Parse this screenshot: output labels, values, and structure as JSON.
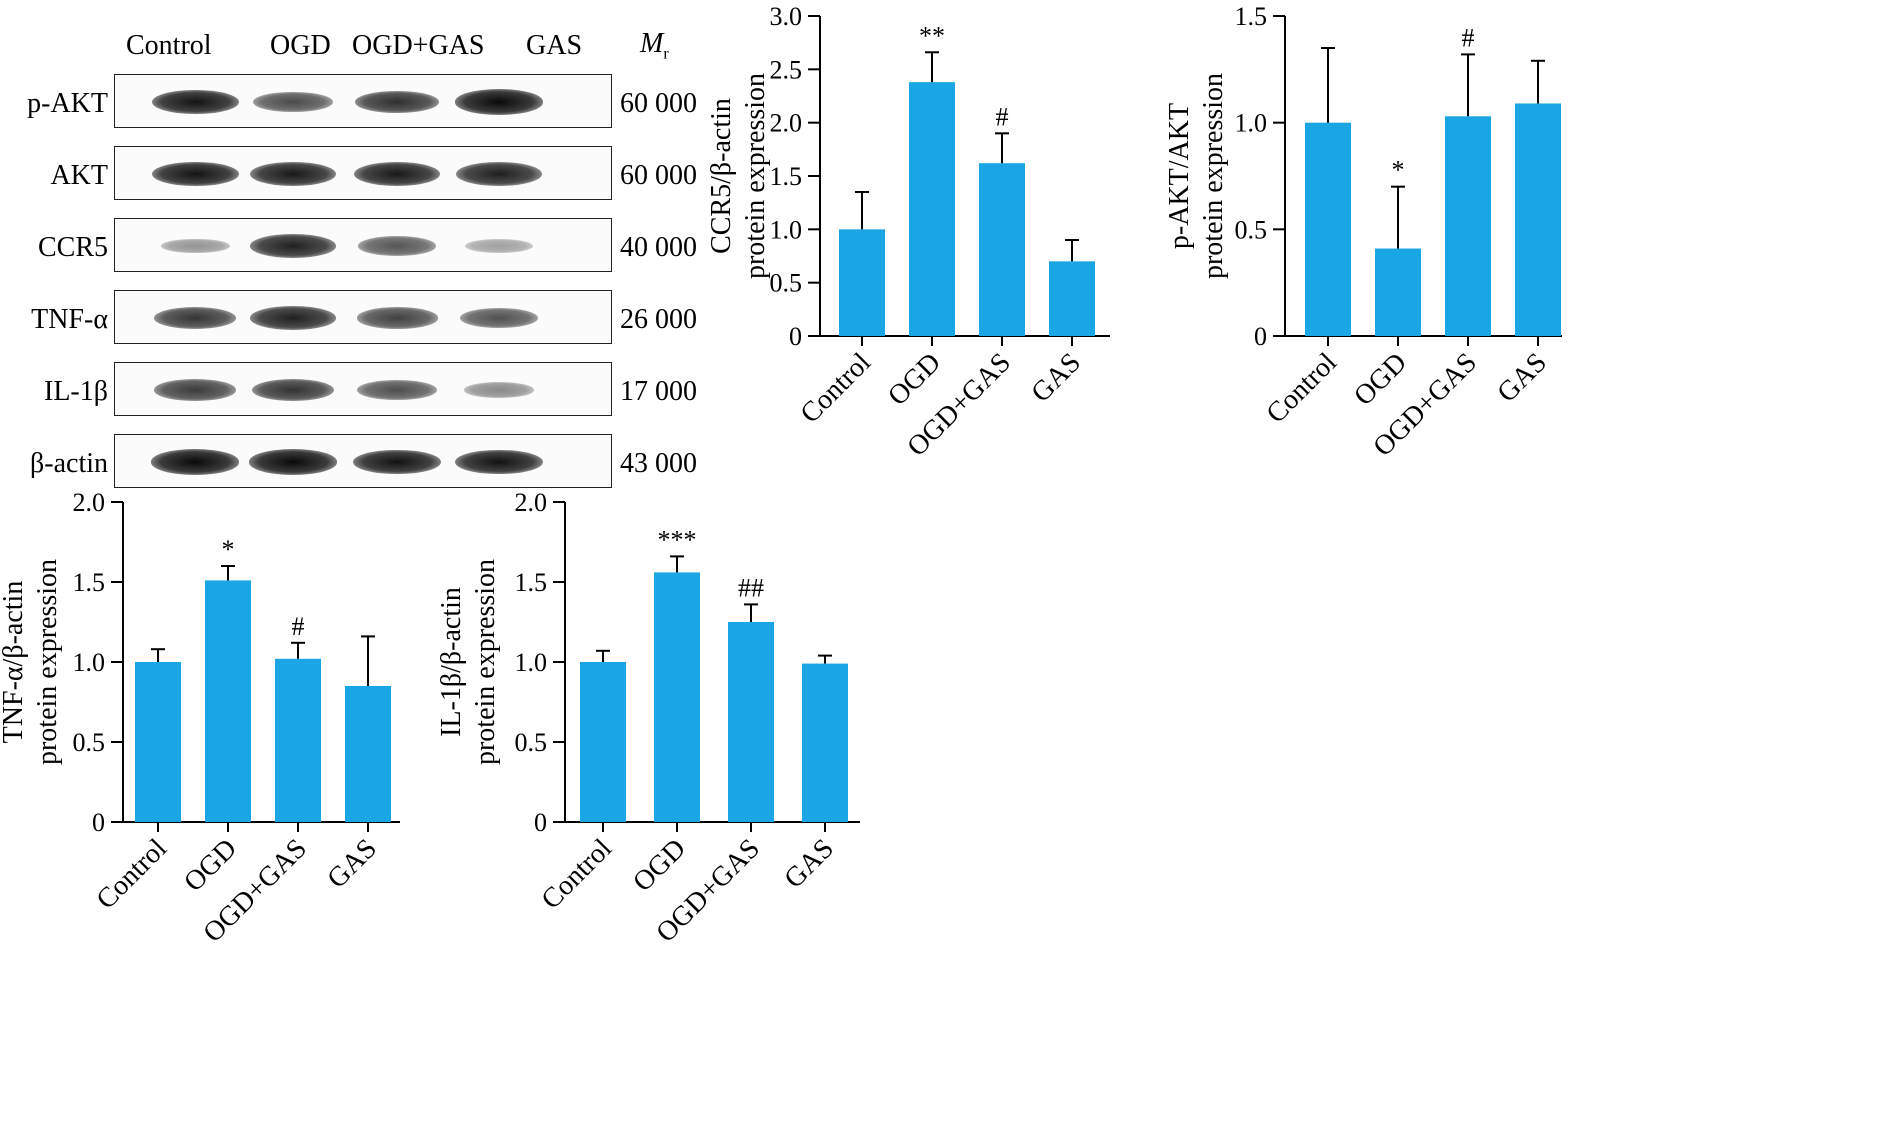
{
  "western_blot": {
    "lanes": [
      "Control",
      "OGD",
      "OGD+GAS",
      "GAS"
    ],
    "mr_label": "M",
    "mr_sub": "r",
    "rows": [
      {
        "name": "p-AKT",
        "mw": "60 000",
        "intensity": [
          0.9,
          0.65,
          0.78,
          0.95
        ]
      },
      {
        "name": "AKT",
        "mw": "60 000",
        "intensity": [
          0.9,
          0.88,
          0.88,
          0.86
        ]
      },
      {
        "name": "CCR5",
        "mw": "40 000",
        "intensity": [
          0.3,
          0.85,
          0.6,
          0.25
        ]
      },
      {
        "name": "TNF-α",
        "mw": "26 000",
        "intensity": [
          0.75,
          0.85,
          0.7,
          0.62
        ]
      },
      {
        "name": "IL-1β",
        "mw": "17 000",
        "intensity": [
          0.72,
          0.76,
          0.64,
          0.35
        ]
      },
      {
        "name": "β-actin",
        "mw": "43 000",
        "intensity": [
          0.95,
          0.95,
          0.92,
          0.92
        ]
      }
    ]
  },
  "bar_color": "#1aa6e4",
  "chart_data": [
    {
      "type": "bar",
      "categories": [
        "Control",
        "OGD",
        "OGD+GAS",
        "GAS"
      ],
      "values": [
        1.0,
        2.38,
        1.62,
        0.7
      ],
      "errors": [
        0.35,
        0.28,
        0.28,
        0.2
      ],
      "annotations": [
        "",
        "**",
        "#",
        ""
      ],
      "ylabel": [
        "CCR5/β-actin",
        "protein expression"
      ],
      "ylim": [
        0,
        3.0
      ],
      "yticks": [
        0,
        0.5,
        1.0,
        1.5,
        2.0,
        2.5,
        3.0
      ],
      "ytick_labels": [
        "0",
        "0.5",
        "1.0",
        "1.5",
        "2.0",
        "2.5",
        "3.0"
      ]
    },
    {
      "type": "bar",
      "categories": [
        "Control",
        "OGD",
        "OGD+GAS",
        "GAS"
      ],
      "values": [
        1.0,
        0.41,
        1.03,
        1.09
      ],
      "errors": [
        0.35,
        0.29,
        0.29,
        0.2
      ],
      "annotations": [
        "",
        "*",
        "#",
        ""
      ],
      "ylabel": [
        "p-AKT/AKT",
        "protein expression"
      ],
      "ylim": [
        0,
        1.5
      ],
      "yticks": [
        0,
        0.5,
        1.0,
        1.5
      ],
      "ytick_labels": [
        "0",
        "0.5",
        "1.0",
        "1.5"
      ]
    },
    {
      "type": "bar",
      "categories": [
        "Control",
        "OGD",
        "OGD+GAS",
        "GAS"
      ],
      "values": [
        1.0,
        1.51,
        1.02,
        0.85
      ],
      "errors": [
        0.08,
        0.09,
        0.1,
        0.31
      ],
      "annotations": [
        "",
        "*",
        "#",
        ""
      ],
      "ylabel": [
        "TNF-α/β-actin",
        "protein expression"
      ],
      "ylim": [
        0,
        2.0
      ],
      "yticks": [
        0,
        0.5,
        1.0,
        1.5,
        2.0
      ],
      "ytick_labels": [
        "0",
        "0.5",
        "1.0",
        "1.5",
        "2.0"
      ]
    },
    {
      "type": "bar",
      "categories": [
        "Control",
        "OGD",
        "OGD+GAS",
        "GAS"
      ],
      "values": [
        1.0,
        1.56,
        1.25,
        0.99
      ],
      "errors": [
        0.07,
        0.1,
        0.11,
        0.05
      ],
      "annotations": [
        "",
        "***",
        "##",
        ""
      ],
      "ylabel": [
        "IL-1β/β-actin",
        "protein expression"
      ],
      "ylim": [
        0,
        2.0
      ],
      "yticks": [
        0,
        0.5,
        1.0,
        1.5,
        2.0
      ],
      "ytick_labels": [
        "0",
        "0.5",
        "1.0",
        "1.5",
        "2.0"
      ]
    }
  ]
}
